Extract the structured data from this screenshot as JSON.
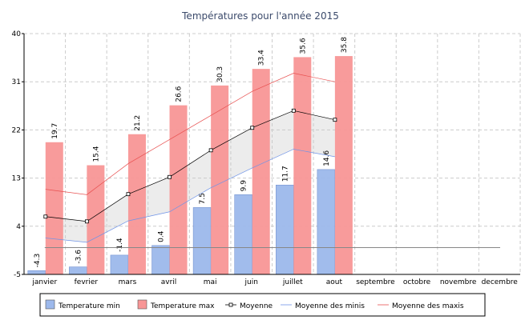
{
  "chart_data": {
    "type": "bar",
    "title": "Températures pour l'année 2015",
    "categories": [
      "janvier",
      "fevrier",
      "mars",
      "avril",
      "mai",
      "juin",
      "juillet",
      "aout",
      "septembre",
      "octobre",
      "novembre",
      "decembre"
    ],
    "ylim": [
      -5,
      40
    ],
    "yticks": [
      -5,
      4,
      13,
      22,
      31,
      40
    ],
    "grid": true,
    "legend": "bottom",
    "series": [
      {
        "name": "Temperature min",
        "kind": "bar",
        "color": "#9db9ec",
        "values": [
          -4.3,
          -3.6,
          -1.4,
          0.4,
          7.5,
          9.9,
          11.7,
          14.6,
          null,
          null,
          null,
          null
        ]
      },
      {
        "name": "Temperature max",
        "kind": "bar",
        "color": "#f89696",
        "values": [
          19.7,
          15.4,
          21.2,
          26.6,
          30.3,
          33.4,
          35.6,
          35.8,
          null,
          null,
          null,
          null
        ]
      },
      {
        "name": "Moyenne",
        "kind": "line-marker",
        "color": "#000000",
        "values": [
          5.8,
          4.9,
          10.0,
          13.2,
          18.2,
          22.4,
          25.6,
          23.9,
          null,
          null,
          null,
          null
        ]
      },
      {
        "name": "Moyenne des minis",
        "kind": "line",
        "color": "#6f94e8",
        "values": [
          1.8,
          1.0,
          5.0,
          6.7,
          11.2,
          14.9,
          18.4,
          17.0,
          null,
          null,
          null,
          null
        ]
      },
      {
        "name": "Moyenne des maxis",
        "kind": "line",
        "color": "#e85050",
        "values": [
          10.9,
          9.9,
          15.7,
          20.2,
          24.7,
          29.2,
          32.6,
          31.0,
          null,
          null,
          null,
          null
        ]
      }
    ]
  }
}
